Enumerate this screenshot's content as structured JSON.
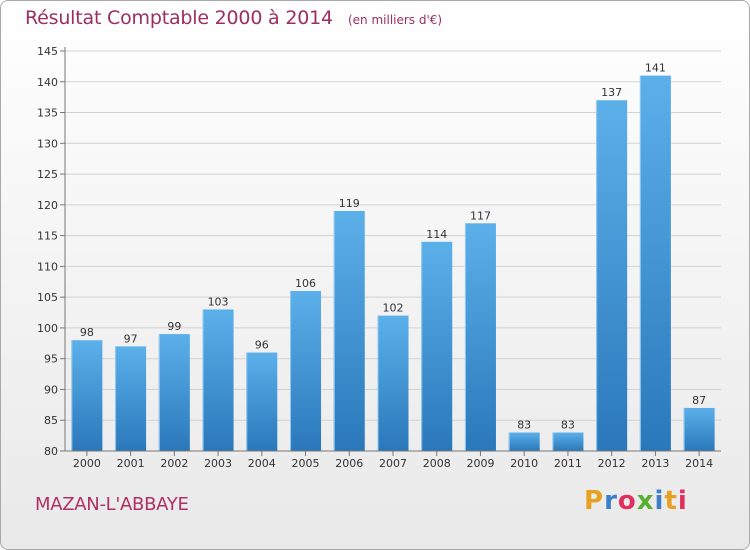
{
  "chart_data": {
    "type": "bar",
    "title": "Résultat Comptable 2000 à 2014",
    "subtitle": "(en milliers d'€)",
    "categories": [
      "2000",
      "2001",
      "2002",
      "2003",
      "2004",
      "2005",
      "2006",
      "2007",
      "2008",
      "2009",
      "2010",
      "2011",
      "2012",
      "2013",
      "2014"
    ],
    "values": [
      98,
      97,
      99,
      103,
      96,
      106,
      119,
      102,
      114,
      117,
      83,
      83,
      137,
      141,
      87
    ],
    "xlabel": "",
    "ylabel": "",
    "ylim": [
      80,
      145
    ],
    "yticks": [
      80,
      85,
      90,
      95,
      100,
      105,
      110,
      115,
      120,
      125,
      130,
      135,
      140,
      145
    ],
    "grid": true,
    "bar_color": "#4a9fdf",
    "bar_color_dark": "#2a78bb"
  },
  "footer": {
    "commune": "MAZAN-L'ABBAYE",
    "brand": "Proxiti",
    "brand_colors": [
      "#e8a020",
      "#3a7fc8",
      "#e03060",
      "#58b030",
      "#3a7fc8",
      "#e8a020",
      "#e03060"
    ]
  },
  "colors": {
    "title": "#9b2f63",
    "commune": "#b0305f"
  }
}
